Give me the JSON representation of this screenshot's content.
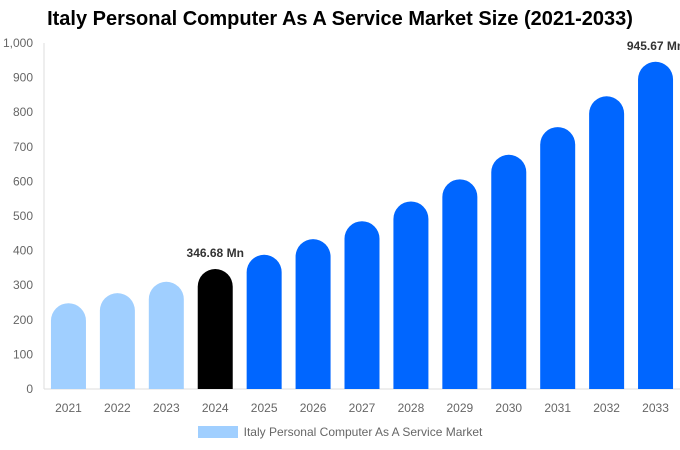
{
  "chart_data": {
    "type": "bar",
    "title": "Italy Personal Computer As A Service Market Size (2021-2033)",
    "categories": [
      "2021",
      "2022",
      "2023",
      "2024",
      "2025",
      "2026",
      "2027",
      "2028",
      "2029",
      "2030",
      "2031",
      "2032",
      "2033"
    ],
    "series": [
      {
        "name": "Italy Personal Computer As A Service Market",
        "values": [
          248,
          277,
          310,
          346.68,
          388,
          433,
          485,
          542,
          606,
          677,
          757,
          846,
          945.67
        ]
      }
    ],
    "data_labels": {
      "2024": "346.68 Mn",
      "2033": "945.67 Mn"
    },
    "ylim": [
      0,
      1000
    ],
    "yticks": [
      0,
      100,
      200,
      300,
      400,
      500,
      600,
      700,
      800,
      900,
      1000
    ],
    "ytick_labels": [
      "0",
      "100",
      "200",
      "300",
      "400",
      "500",
      "600",
      "700",
      "800",
      "900",
      "1,000"
    ],
    "grid": false,
    "legend_position": "bottom",
    "colors": {
      "historical": "#a0cfff",
      "base_year": "#000000",
      "forecast": "#0066ff"
    }
  }
}
